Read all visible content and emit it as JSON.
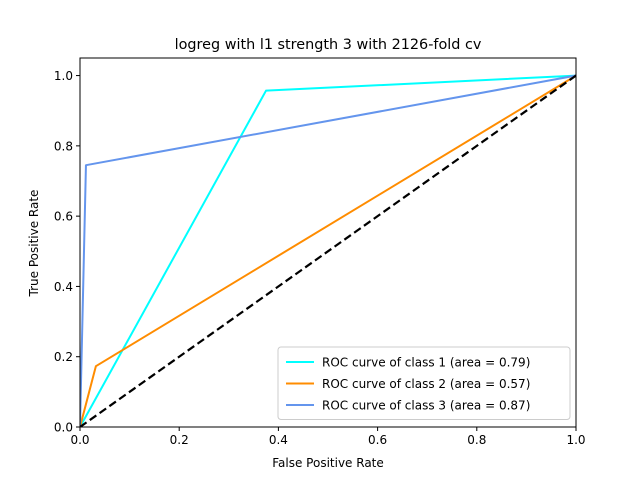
{
  "chart_data": {
    "type": "line",
    "title": "logreg with l1 strength 3 with 2126-fold cv",
    "xlabel": "False Positive Rate",
    "ylabel": "True Positive Rate",
    "xlim": [
      0.0,
      1.0
    ],
    "ylim": [
      0.0,
      1.05
    ],
    "x_ticks": [
      0.0,
      0.2,
      0.4,
      0.6,
      0.8,
      1.0
    ],
    "y_ticks": [
      0.0,
      0.2,
      0.4,
      0.6,
      0.8,
      1.0
    ],
    "x_tick_labels": [
      "0.0",
      "0.2",
      "0.4",
      "0.6",
      "0.8",
      "1.0"
    ],
    "y_tick_labels": [
      "0.0",
      "0.2",
      "0.4",
      "0.6",
      "0.8",
      "1.0"
    ],
    "grid": false,
    "legend_position": "lower-right",
    "series": [
      {
        "name": "ROC curve of class 1 (area = 0.79)",
        "color": "#00ffff",
        "dashed": false,
        "x": [
          0.0,
          0.375,
          1.0
        ],
        "y": [
          0.0,
          0.957,
          1.0
        ]
      },
      {
        "name": "ROC curve of class 2 (area = 0.57)",
        "color": "#ff8c00",
        "dashed": false,
        "x": [
          0.0,
          0.032,
          1.0
        ],
        "y": [
          0.0,
          0.173,
          1.0
        ]
      },
      {
        "name": "ROC curve of class 3 (area = 0.87)",
        "color": "#6495ed",
        "dashed": false,
        "x": [
          0.0,
          0.012,
          1.0
        ],
        "y": [
          0.0,
          0.745,
          1.0
        ]
      },
      {
        "name": "",
        "color": "#000000",
        "dashed": true,
        "x": [
          0.0,
          1.0
        ],
        "y": [
          0.0,
          1.0
        ]
      }
    ]
  }
}
